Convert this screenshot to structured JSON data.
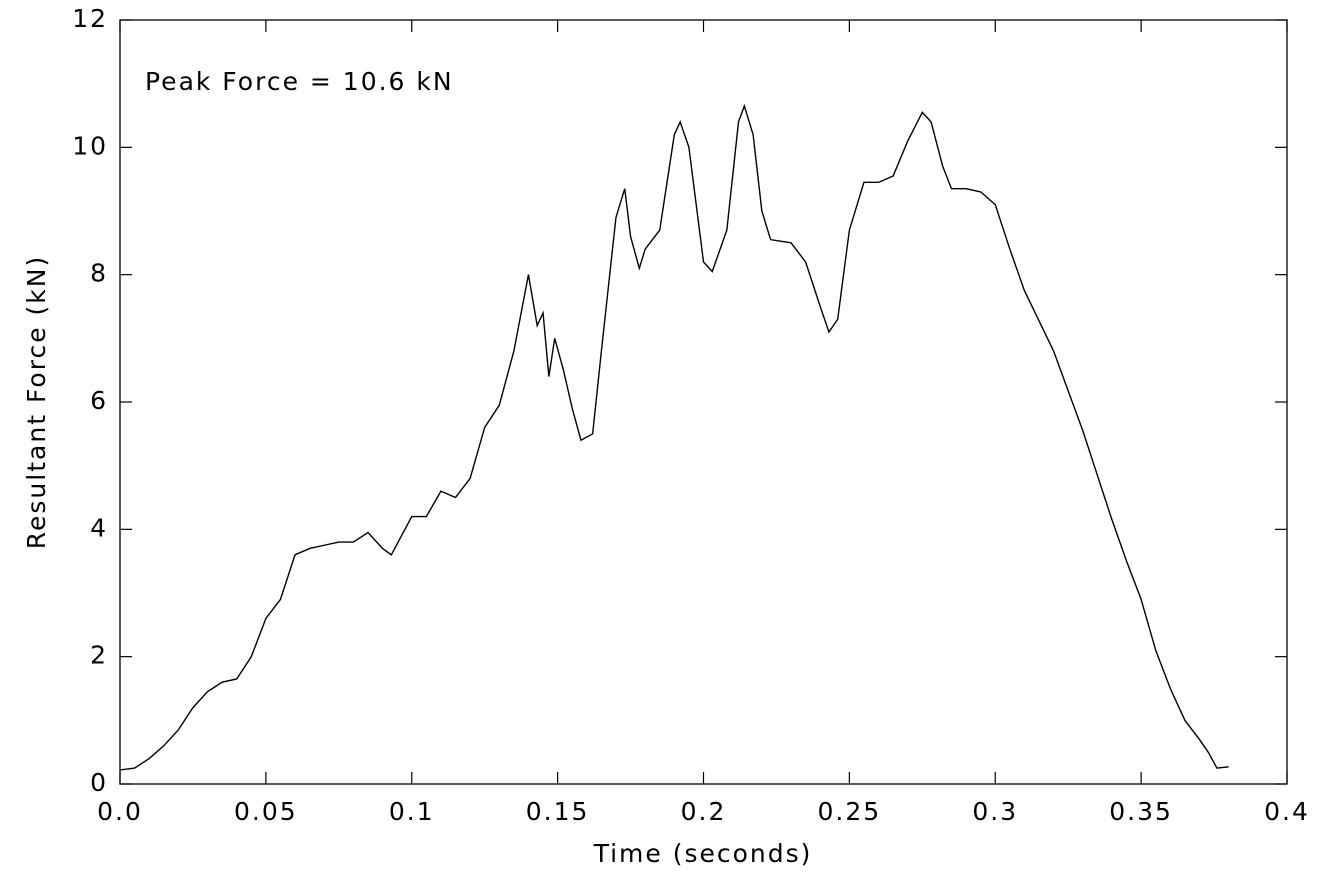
{
  "chart_data": {
    "type": "line",
    "title": null,
    "xlabel": "Time (seconds)",
    "ylabel": "Resultant Force (kN)",
    "annotation": "Peak Force =  10.6 kN",
    "xlim": [
      0,
      0.4
    ],
    "ylim": [
      0,
      12
    ],
    "xticks": [
      {
        "value": 0,
        "label": "0.0"
      },
      0.05,
      0.1,
      0.15,
      0.2,
      0.25,
      0.3,
      0.35,
      0.4
    ],
    "yticks": [
      0,
      2,
      4,
      6,
      8,
      10,
      12
    ],
    "grid": false,
    "series": [
      {
        "color": "#000000",
        "x": [
          0,
          0.005,
          0.01,
          0.015,
          0.02,
          0.025,
          0.03,
          0.035,
          0.04,
          0.045,
          0.05,
          0.055,
          0.06,
          0.065,
          0.07,
          0.075,
          0.08,
          0.085,
          0.09,
          0.093,
          0.1,
          0.105,
          0.11,
          0.115,
          0.12,
          0.125,
          0.13,
          0.135,
          0.14,
          0.143,
          0.145,
          0.147,
          0.149,
          0.152,
          0.155,
          0.158,
          0.162,
          0.165,
          0.17,
          0.173,
          0.175,
          0.178,
          0.18,
          0.185,
          0.19,
          0.192,
          0.195,
          0.2,
          0.203,
          0.208,
          0.212,
          0.214,
          0.217,
          0.22,
          0.223,
          0.23,
          0.235,
          0.24,
          0.243,
          0.246,
          0.25,
          0.255,
          0.26,
          0.265,
          0.27,
          0.275,
          0.278,
          0.282,
          0.285,
          0.29,
          0.295,
          0.3,
          0.305,
          0.31,
          0.32,
          0.33,
          0.34,
          0.345,
          0.35,
          0.355,
          0.36,
          0.365,
          0.37,
          0.373,
          0.376,
          0.38
        ],
        "values": [
          0.22,
          0.25,
          0.4,
          0.6,
          0.85,
          1.2,
          1.45,
          1.6,
          1.65,
          2.0,
          2.6,
          2.9,
          3.6,
          3.7,
          3.75,
          3.8,
          3.8,
          3.95,
          3.7,
          3.6,
          4.2,
          4.2,
          4.6,
          4.5,
          4.8,
          5.6,
          5.95,
          6.8,
          8.0,
          7.2,
          7.4,
          6.4,
          7.0,
          6.5,
          5.9,
          5.4,
          5.5,
          6.8,
          8.9,
          9.35,
          8.6,
          8.1,
          8.4,
          8.7,
          10.2,
          10.4,
          10.0,
          8.2,
          8.05,
          8.7,
          10.4,
          10.65,
          10.2,
          9.0,
          8.55,
          8.5,
          8.2,
          7.5,
          7.1,
          7.3,
          8.7,
          9.45,
          9.45,
          9.55,
          10.1,
          10.55,
          10.4,
          9.7,
          9.35,
          9.35,
          9.3,
          9.1,
          8.4,
          7.75,
          6.8,
          5.55,
          4.15,
          3.5,
          2.9,
          2.1,
          1.5,
          1.0,
          0.7,
          0.5,
          0.25,
          0.27
        ]
      }
    ]
  }
}
